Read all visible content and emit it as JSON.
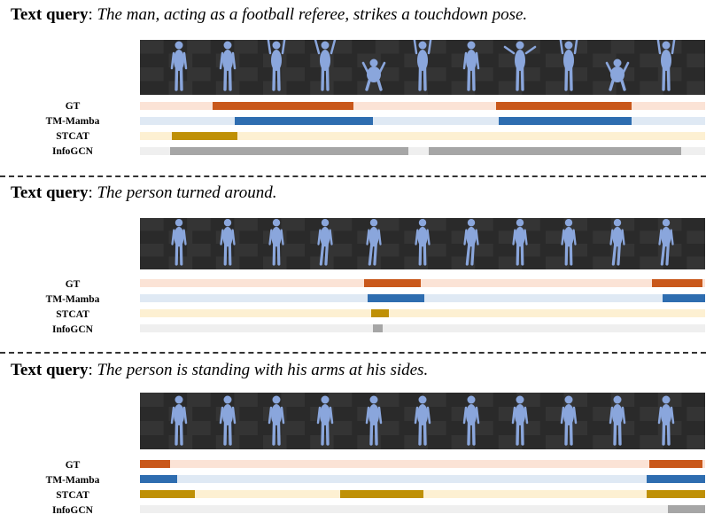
{
  "colors": {
    "gt": "#c9581b",
    "gt_bg": "#fbe3d6",
    "tm_mamba": "#2e6db0",
    "tm_mamba_bg": "#dfe9f4",
    "stcat": "#bf9006",
    "stcat_bg": "#fdf0d2",
    "infogcn": "#a6a6a6",
    "infogcn_bg": "#efefef",
    "figure": "#8aa6dc",
    "floor_dark": "#2a2a2a",
    "floor_light": "#3c3c3c"
  },
  "query_prefix": "Text query",
  "track_labels": {
    "gt": "GT",
    "tm_mamba": "TM-Mamba",
    "stcat": "STCAT",
    "infogcn": "InfoGCN"
  },
  "panels": [
    {
      "query": "The man, acting as a football referee, strikes a touchdown pose.",
      "figure_count": 11,
      "poses": [
        "stand",
        "stand",
        "arms-up",
        "arms-bent",
        "crouch",
        "arms-up",
        "stand",
        "arms-out",
        "arms-up",
        "crouch",
        "arms-up"
      ],
      "tracks": {
        "gt": [
          [
            0.129,
            0.378
          ],
          [
            0.63,
            0.87
          ]
        ],
        "tm_mamba": [
          [
            0.168,
            0.412
          ],
          [
            0.635,
            0.87
          ]
        ],
        "stcat": [
          [
            0.057,
            0.173
          ]
        ],
        "infogcn": [
          [
            0.053,
            0.475
          ],
          [
            0.511,
            0.957
          ]
        ]
      }
    },
    {
      "query": "The person turned around.",
      "figure_count": 11,
      "poses": [
        "stand",
        "stand",
        "stand",
        "walk",
        "walk",
        "stand",
        "walk",
        "stand",
        "stand",
        "walk",
        "walk"
      ],
      "tracks": {
        "gt": [
          [
            0.397,
            0.497
          ],
          [
            0.906,
            0.995
          ]
        ],
        "tm_mamba": [
          [
            0.403,
            0.503
          ],
          [
            0.925,
            1.0
          ]
        ],
        "stcat": [
          [
            0.409,
            0.441
          ]
        ],
        "infogcn": [
          [
            0.412,
            0.43
          ]
        ]
      }
    },
    {
      "query": "The person is standing with his arms at his sides.",
      "figure_count": 11,
      "poses": [
        "stand",
        "stand",
        "stand",
        "stand",
        "stand",
        "stand",
        "stand",
        "stand",
        "stand",
        "stand",
        "stand"
      ],
      "tracks": {
        "gt": [
          [
            0.0,
            0.054
          ],
          [
            0.901,
            0.995
          ]
        ],
        "tm_mamba": [
          [
            0.0,
            0.066
          ],
          [
            0.897,
            1.0
          ]
        ],
        "stcat": [
          [
            0.0,
            0.097
          ],
          [
            0.354,
            0.502
          ],
          [
            0.897,
            1.0
          ]
        ],
        "infogcn": [
          [
            0.934,
            1.0
          ]
        ]
      }
    }
  ]
}
